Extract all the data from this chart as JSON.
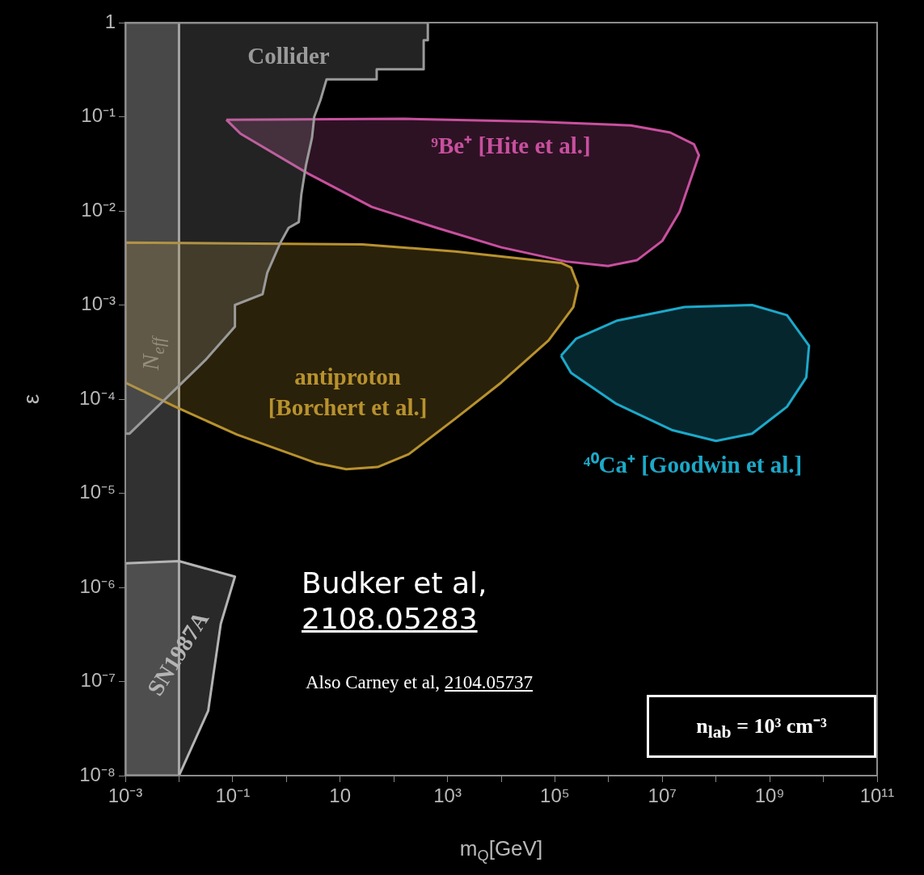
{
  "chart_data": {
    "type": "area",
    "xlabel": "m$_{Q}$[GeV]",
    "ylabel": "ε",
    "log": "xy",
    "grid": false,
    "legend": false,
    "line_style": "solid",
    "marker": "none",
    "xlim": [
      0.001,
      100000000000
    ],
    "ylim": [
      1e-08,
      1
    ],
    "xticks": [
      {
        "value": 0.001,
        "label": "10⁻³"
      },
      {
        "value": 0.01,
        "label": null
      },
      {
        "value": 0.1,
        "label": "10⁻¹"
      },
      {
        "value": 1,
        "label": null
      },
      10,
      {
        "value": 100,
        "label": null
      },
      {
        "value": 1000,
        "label": "10³"
      },
      {
        "value": 10000,
        "label": null
      },
      {
        "value": 100000,
        "label": "10⁵"
      },
      {
        "value": 1000000,
        "label": null
      },
      {
        "value": 10000000,
        "label": "10⁷"
      },
      {
        "value": 100000000,
        "label": null
      },
      {
        "value": 1000000000,
        "label": "10⁹"
      },
      {
        "value": 10000000000,
        "label": null
      },
      {
        "value": 100000000000,
        "label": "10¹¹"
      }
    ],
    "yticks": [
      {
        "value": 1e-08,
        "label": "10⁻⁸"
      },
      {
        "value": 1e-07,
        "label": "10⁻⁷"
      },
      {
        "value": 1e-06,
        "label": "10⁻⁶"
      },
      {
        "value": 1e-05,
        "label": "10⁻⁵"
      },
      {
        "value": 0.0001,
        "label": "10⁻⁴"
      },
      {
        "value": 0.001,
        "label": "10⁻³"
      },
      {
        "value": 0.01,
        "label": "10⁻²"
      },
      {
        "value": 0.1,
        "label": "10⁻¹"
      },
      1
    ],
    "series": [
      {
        "name": "Collider",
        "color": "#9a9a9a",
        "x": [
          0.001,
          430,
          430,
          360,
          360,
          48,
          48,
          5.6,
          4.3,
          3.3,
          3.0,
          2.3,
          1.9,
          1.7,
          1.1,
          0.76,
          0.44,
          0.36,
          0.11,
          0.11,
          0.031,
          0.023,
          0.0012,
          0.001,
          0.001
        ],
        "values": [
          1,
          1,
          0.65,
          0.65,
          0.32,
          0.32,
          0.25,
          0.25,
          0.15,
          0.1,
          0.06,
          0.03,
          0.015,
          0.0076,
          0.0066,
          0.0045,
          0.0022,
          0.0013,
          0.001,
          0.00059,
          0.00026,
          0.00022,
          4.3e-05,
          4.3e-05,
          1
        ]
      },
      {
        "name": "⁹Be⁺ [Hite et al.]",
        "color": "#c8509e",
        "x": [
          0.076,
          0.14,
          2.5,
          39,
          630,
          10000,
          160000,
          980000,
          3400000,
          10000000,
          21000000,
          48000000,
          39000000,
          14000000,
          2600000,
          41000,
          160,
          0.076
        ],
        "values": [
          0.093,
          0.066,
          0.025,
          0.011,
          0.0066,
          0.0041,
          0.0029,
          0.0026,
          0.003,
          0.0048,
          0.0098,
          0.039,
          0.051,
          0.068,
          0.081,
          0.089,
          0.095,
          0.093
        ]
      },
      {
        "name": "antiproton\n[Borchert et al.]",
        "color": "#b8922e",
        "x": [
          0.001,
          26,
          1400,
          130000,
          200000,
          270000,
          220000,
          76000,
          10000,
          1400,
          190,
          50,
          13,
          3.5,
          0.12,
          0.0085,
          0.001,
          0.001
        ],
        "values": [
          0.0046,
          0.0044,
          0.0037,
          0.0028,
          0.0025,
          0.0016,
          0.00095,
          0.00042,
          0.00015,
          6.2e-05,
          2.6e-05,
          1.9e-05,
          1.8e-05,
          2.1e-05,
          4.2e-05,
          8.3e-05,
          0.00015,
          0.0046
        ]
      },
      {
        "name": "⁴⁰Ca⁺ [Goodwin et al.]",
        "color": "#1ca9c9",
        "x": [
          130000,
          250000,
          1400000,
          26000000,
          470000000,
          2100000000,
          5400000000,
          4800000000,
          2100000000,
          470000000,
          100000000,
          15000000,
          1400000,
          200000,
          130000
        ],
        "values": [
          0.00029,
          0.00044,
          0.00068,
          0.00095,
          0.001,
          0.00078,
          0.00037,
          0.00017,
          8.3e-05,
          4.3e-05,
          3.6e-05,
          4.7e-05,
          8.9e-05,
          0.00019,
          0.00029
        ]
      },
      {
        "name": "SN1987A",
        "color": "#b4b4b4",
        "x": [
          0.001,
          0.01,
          0.11,
          0.06,
          0.035,
          0.01,
          0.001,
          0.001
        ],
        "values": [
          1.8e-06,
          1.9e-06,
          1.3e-06,
          4.1e-07,
          4.9e-08,
          1e-08,
          1e-08,
          1.8e-06
        ]
      }
    ],
    "bands": [
      {
        "axis": "x",
        "from": 0.001,
        "to": 0.01,
        "label": "N$_{eff}$",
        "color": "#5a5a5a"
      }
    ],
    "ref_lines": [
      {
        "axis": "x",
        "value": 0.01,
        "color": "#a8a8a8"
      }
    ],
    "annotations": [
      "Budker et al,\n2108.05283",
      "Also Carney et al, 2104.05737",
      "n$_{lab}$ = 10³ cm⁻³"
    ]
  }
}
